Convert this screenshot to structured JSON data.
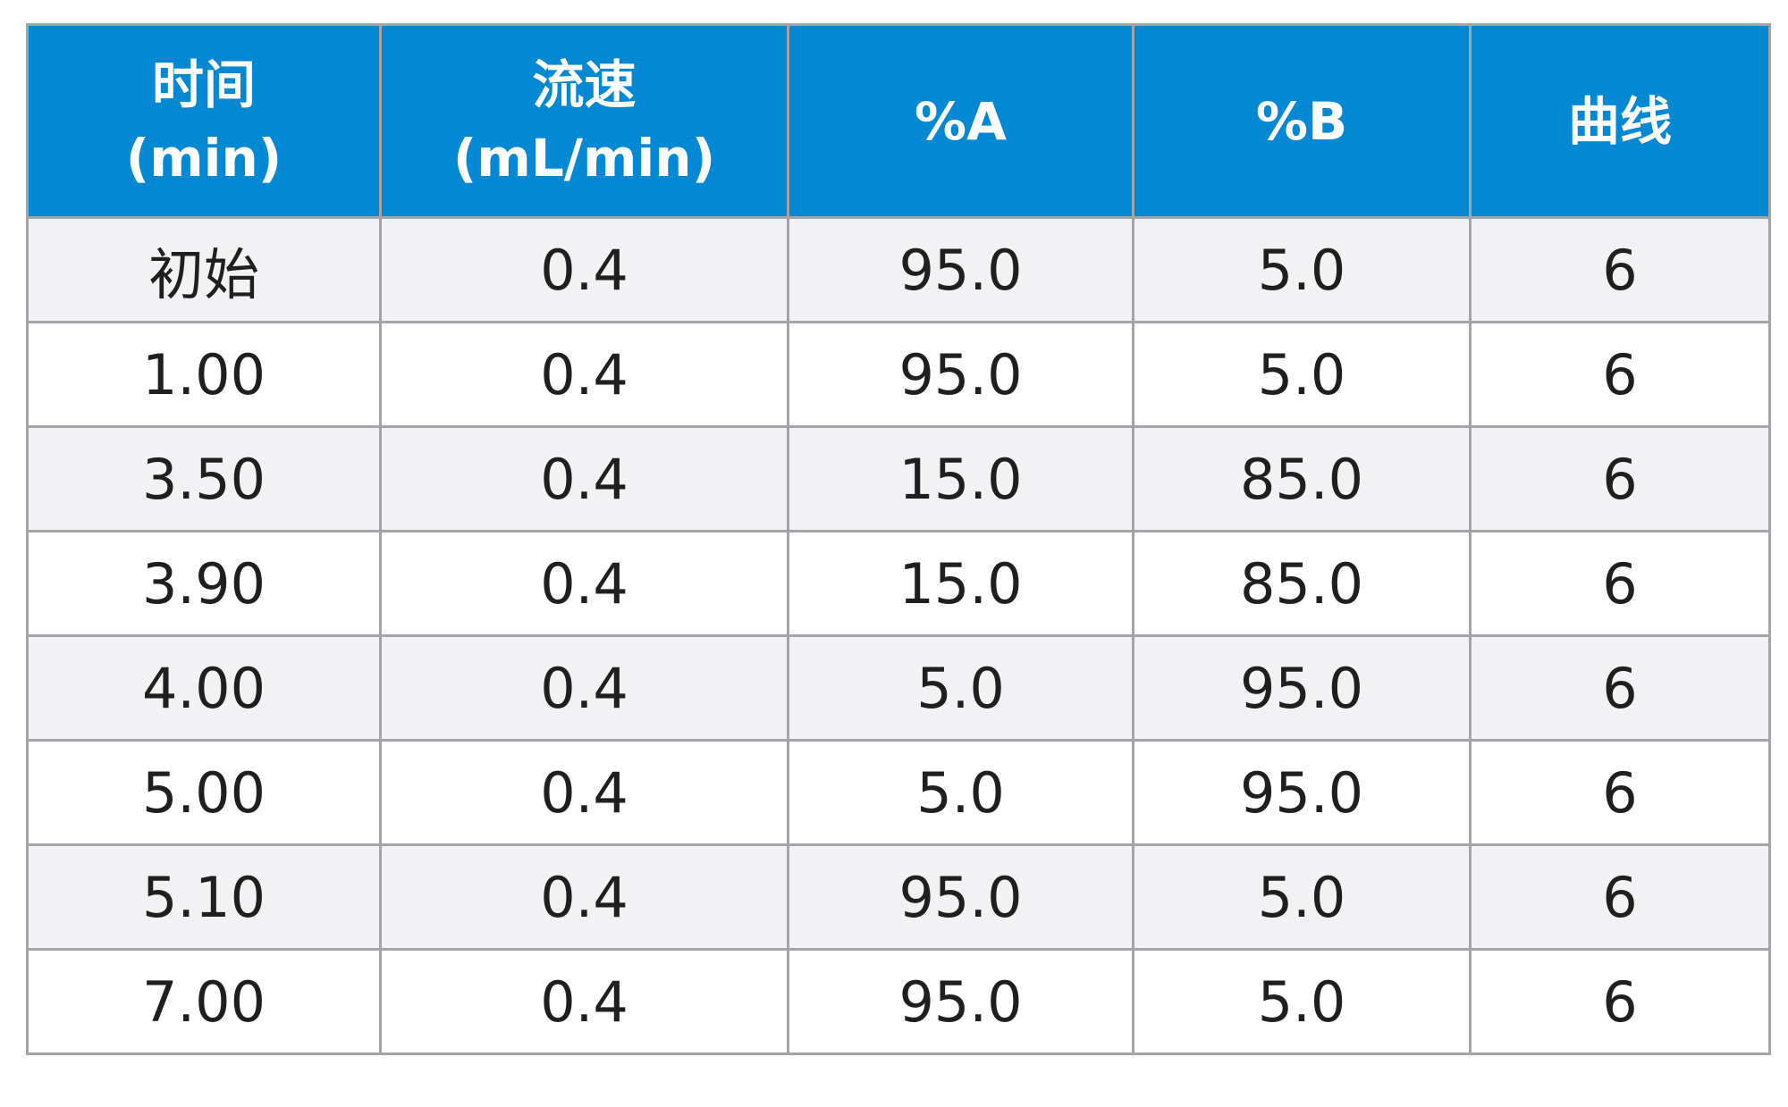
{
  "colors": {
    "header_bg": "#0389d3",
    "header_text": "#ffffff",
    "row_alt_bg": "#f2f2f4",
    "row_bg": "#ffffff",
    "grid": "#a4a4a8"
  },
  "table": {
    "headers": [
      {
        "line1": "时间",
        "line2": "(min)"
      },
      {
        "line1": "流速",
        "line2": "(mL/min)"
      },
      {
        "line1": "%A",
        "line2": ""
      },
      {
        "line1": "%B",
        "line2": ""
      },
      {
        "line1": "曲线",
        "line2": ""
      }
    ],
    "rows": [
      [
        "初始",
        "0.4",
        "95.0",
        "5.0",
        "6"
      ],
      [
        "1.00",
        "0.4",
        "95.0",
        "5.0",
        "6"
      ],
      [
        "3.50",
        "0.4",
        "15.0",
        "85.0",
        "6"
      ],
      [
        "3.90",
        "0.4",
        "15.0",
        "85.0",
        "6"
      ],
      [
        "4.00",
        "0.4",
        "5.0",
        "95.0",
        "6"
      ],
      [
        "5.00",
        "0.4",
        "5.0",
        "95.0",
        "6"
      ],
      [
        "5.10",
        "0.4",
        "95.0",
        "5.0",
        "6"
      ],
      [
        "7.00",
        "0.4",
        "95.0",
        "5.0",
        "6"
      ]
    ]
  }
}
